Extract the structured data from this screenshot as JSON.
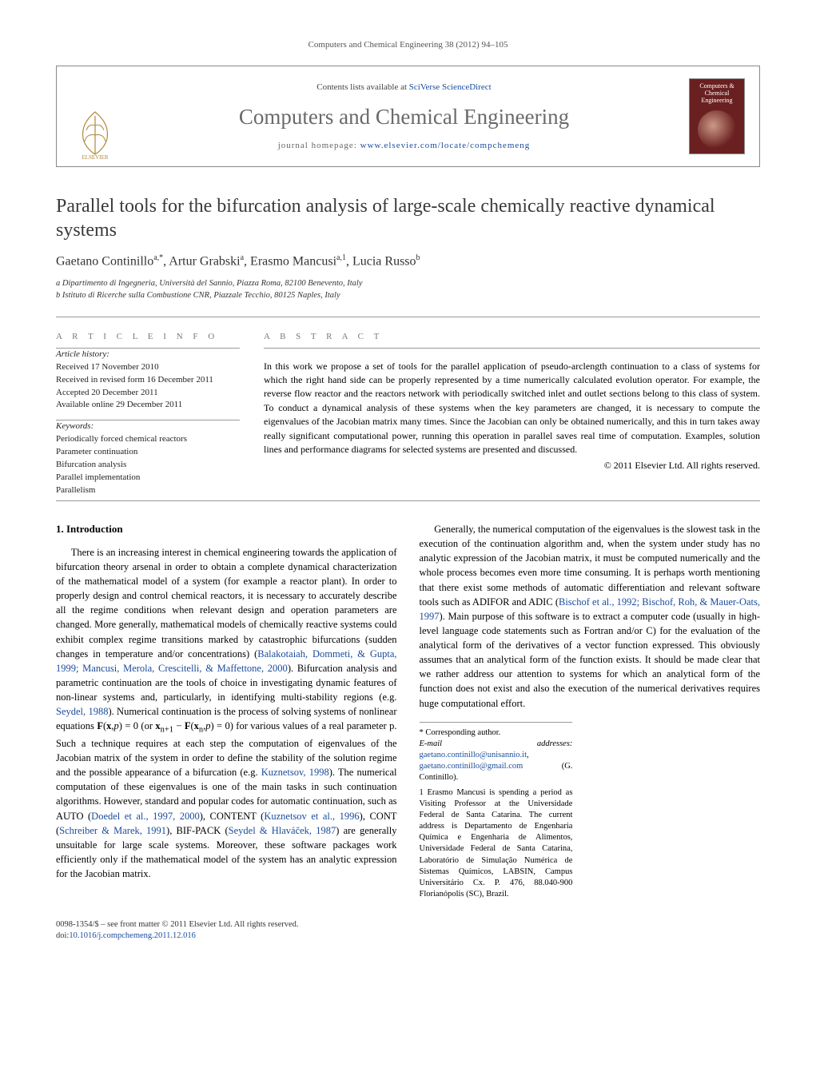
{
  "runningHead": "Computers and Chemical Engineering 38 (2012) 94–105",
  "masthead": {
    "contentsPrefix": "Contents lists available at ",
    "contentsLinkText": "SciVerse ScienceDirect",
    "journalName": "Computers and Chemical Engineering",
    "homepagePrefix": "journal homepage: ",
    "homepageUrl": "www.elsevier.com/locate/compchemeng",
    "coverLabel": "Computers & Chemical Engineering"
  },
  "article": {
    "title": "Parallel tools for the bifurcation analysis of large-scale chemically reactive dynamical systems",
    "authorsHtml": "Gaetano Continillo<sup>a,*</sup>, Artur Grabski<sup>a</sup>, Erasmo Mancusi<sup>a,1</sup>, Lucia Russo<sup>b</sup>",
    "affA": "a Dipartimento di Ingegneria, Università del Sannio, Piazza Roma, 82100 Benevento, Italy",
    "affB": "b Istituto di Ricerche sulla Combustione CNR, Piazzale Tecchio, 80125 Naples, Italy"
  },
  "info": {
    "headArticleInfo": "a r t i c l e   i n f o",
    "headAbstract": "a b s t r a c t",
    "historyLabel": "Article history:",
    "received": "Received 17 November 2010",
    "revised": "Received in revised form 16 December 2011",
    "accepted": "Accepted 20 December 2011",
    "online": "Available online 29 December 2011",
    "keywordsLabel": "Keywords:",
    "keywords": [
      "Periodically forced chemical reactors",
      "Parameter continuation",
      "Bifurcation analysis",
      "Parallel implementation",
      "Parallelism"
    ]
  },
  "abstract": "In this work we propose a set of tools for the parallel application of pseudo-arclength continuation to a class of systems for which the right hand side can be properly represented by a time numerically calculated evolution operator. For example, the reverse flow reactor and the reactors network with periodically switched inlet and outlet sections belong to this class of system. To conduct a dynamical analysis of these systems when the key parameters are changed, it is necessary to compute the eigenvalues of the Jacobian matrix many times. Since the Jacobian can only be obtained numerically, and this in turn takes away really significant computational power, running this operation in parallel saves real time of computation. Examples, solution lines and performance diagrams for selected systems are presented and discussed.",
  "copyright": "© 2011 Elsevier Ltd. All rights reserved.",
  "section1": {
    "heading": "1. Introduction",
    "p1a": "There is an increasing interest in chemical engineering towards the application of bifurcation theory arsenal in order to obtain a complete dynamical characterization of the mathematical model of a system (for example a reactor plant). In order to properly design and control chemical reactors, it is necessary to accurately describe all the regime conditions when relevant design and operation parameters are changed. More generally, mathematical models of chemically reactive systems could exhibit complex regime transitions marked by catastrophic bifurcations (sudden changes in temperature and/or concentrations) (",
    "p1ref1": "Balakotaiah, Dommeti, & Gupta, 1999; Mancusi, Merola, Crescitelli, & Maffettone, 2000",
    "p1b": "). Bifurcation analysis and parametric continuation are the tools of choice in investigating dynamic features of non-linear systems and, particularly, in identifying multi-stability regions (e.g. ",
    "p1ref2": "Seydel, 1988",
    "p1c": "). Numerical continuation is the process of solving systems of nonlinear equations ",
    "p1eq": "F(x,p) = 0 (or x_{n+1} − F(x_n,p) = 0)",
    "p1d": " for various values of a real parameter p. Such a technique requires at each step the computation of eigenvalues of the Jacobian matrix of the system in order to define the stability of the solution regime and the possible appearance of a bifurcation (e.g. ",
    "p1ref3": "Kuznetsov, 1998",
    "p1e": "). The numerical computation of these eigenvalues is one of the main tasks in such continuation algorithms. However, standard and popular codes for automatic continuation, such as AUTO (",
    "p1ref4": "Doedel et al., 1997, 2000",
    "p1f": "), CONTENT (",
    "p1ref5": "Kuznetsov et al., 1996",
    "p1g": "), CONT (",
    "p1ref6": "Schreiber & Marek, 1991",
    "p1h": "), BIF-PACK (",
    "p1ref7": "Seydel & Hlaváček, 1987",
    "p1i": ") are generally unsuitable for large scale systems. Moreover, these software packages work efficiently only if the mathematical model of the system has an analytic expression for the Jacobian matrix.",
    "p2a": "Generally, the numerical computation of the eigenvalues is the slowest task in the execution of the continuation algorithm and, when the system under study has no analytic expression of the Jacobian matrix, it must be computed numerically and the whole process becomes even more time consuming. It is perhaps worth mentioning that there exist some methods of automatic differentiation and relevant software tools such as ADIFOR and ADIC (",
    "p2ref1": "Bischof et al., 1992; Bischof, Roh, & Mauer-Oats, 1997",
    "p2b": "). Main purpose of this software is to extract a computer code (usually in high-level language code statements such as Fortran and/or C) for the evaluation of the analytical form of the derivatives of a vector function expressed. This obviously assumes that an analytical form of the function exists. It should be made clear that we rather address our attention to systems for which an analytical form of the function does not exist and also the execution of the numerical derivatives requires huge computational effort."
  },
  "footnotes": {
    "starLabel": "* Corresponding author.",
    "emailLabel": "E-mail addresses:",
    "email1": "gaetano.continillo@unisannio.it",
    "email2": "gaetano.continillo@gmail.com",
    "emailOwner": "(G. Continillo).",
    "fn1": "1 Erasmo Mancusi is spending a period as Visiting Professor at the Universidade Federal de Santa Catarina. The current address is Departamento de Engenharia Química e Engenharia de Alimentos, Universidade Federal de Santa Catarina, Laboratório de Simulação Numérica de Sistemas Químicos, LABSIN, Campus Universitário Cx. P. 476, 88.040-900 Florianópolis (SC), Brazil."
  },
  "bottom": {
    "issn": "0098-1354/$ – see front matter © 2011 Elsevier Ltd. All rights reserved.",
    "doiLabel": "doi:",
    "doi": "10.1016/j.compchemeng.2011.12.016"
  },
  "colors": {
    "link": "#1a4b9b",
    "headingGrey": "#6a6a6a",
    "journalCover": "#6a2020"
  }
}
